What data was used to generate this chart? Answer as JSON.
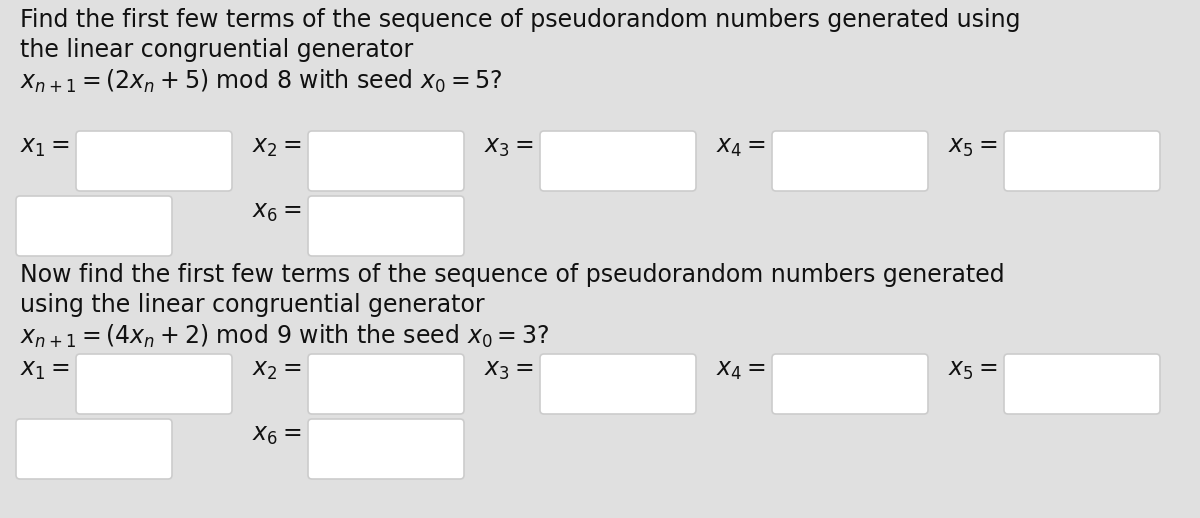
{
  "bg_color": "#e0e0e0",
  "text_color": "#111111",
  "box_color": "#ffffff",
  "box_edge_color": "#cccccc",
  "line1": "Find the first few terms of the sequence of pseudorandom numbers generated using",
  "line2": "the linear congruential generator",
  "formula1": "$x_{n+1} = (2x_n + 5)$ mod 8 with seed $x_0 = 5$?",
  "formula2": "$x_{n+1} = (4x_n + 2)$ mod 9 with the seed $x_0 = 3$?",
  "row1_labels": [
    "$x_1 =$",
    "$x_2 =$",
    "$x_3 =$",
    "$x_4 =$",
    "$x_5 =$"
  ],
  "row1_x6": "$x_6 =$",
  "line3": "Now find the first few terms of the sequence of pseudorandom numbers generated",
  "line4": "using the linear congruential generator",
  "row2_labels": [
    "$x_1 =$",
    "$x_2 =$",
    "$x_3 =$",
    "$x_4 =$",
    "$x_5 =$"
  ],
  "row2_x6": "$x_6 =$",
  "font_size_text": 17,
  "font_size_formula": 17,
  "font_size_label": 17
}
